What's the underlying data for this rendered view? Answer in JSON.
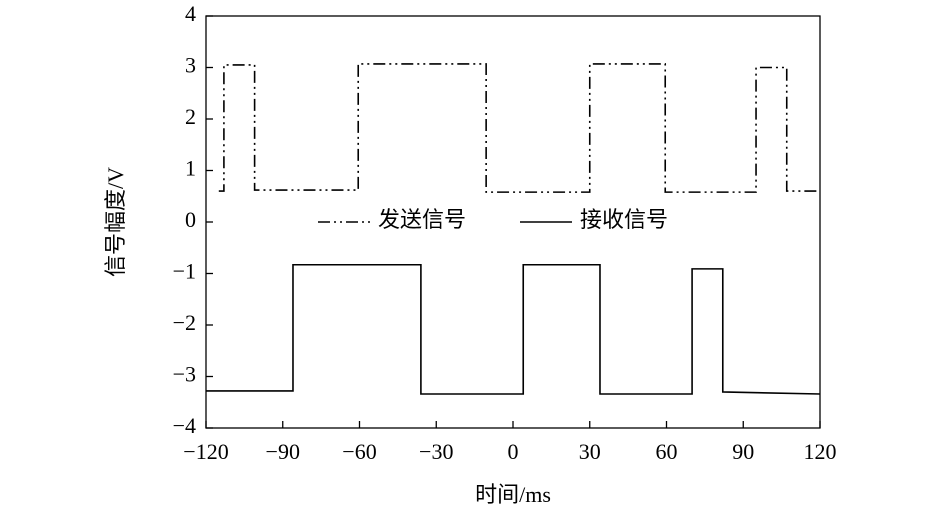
{
  "chart_data": {
    "type": "line",
    "xlabel": "时间/ms",
    "ylabel": "信号幅度/V",
    "xlim": [
      -120,
      120
    ],
    "xticks": [
      {
        "value": -120,
        "label": "−120"
      },
      {
        "value": -90,
        "label": "−90"
      },
      {
        "value": -60,
        "label": "−60"
      },
      {
        "value": -30,
        "label": "−30"
      },
      0,
      30,
      60,
      90,
      120
    ],
    "ylim": [
      -4,
      4
    ],
    "yticks": [
      {
        "value": -4,
        "label": "−4"
      },
      {
        "value": -3,
        "label": "−3"
      },
      {
        "value": -2,
        "label": "−2"
      },
      {
        "value": -1,
        "label": "−1"
      },
      0,
      1,
      2,
      3,
      4
    ],
    "legend": "center",
    "series": [
      {
        "name": "发送信号",
        "color": "#000000",
        "style": "dashdotdot",
        "x": [
          -115,
          -113,
          -113,
          -101,
          -101,
          -60.5,
          -60.5,
          -10.5,
          -10.5,
          30,
          30,
          59.5,
          59.5,
          95,
          95,
          107,
          107,
          120
        ],
        "values": [
          0.6,
          0.6,
          3.05,
          3.05,
          0.62,
          0.62,
          3.07,
          3.07,
          0.58,
          0.58,
          3.07,
          3.07,
          0.58,
          0.58,
          3.0,
          3.0,
          0.6,
          0.6
        ]
      },
      {
        "name": "接收信号",
        "color": "#000000",
        "style": "solid",
        "x": [
          -120,
          -86,
          -86,
          -36,
          -36,
          4,
          4,
          34,
          34,
          70,
          70,
          82,
          82,
          120
        ],
        "values": [
          -3.28,
          -3.28,
          -0.83,
          -0.83,
          -3.34,
          -3.34,
          -0.83,
          -0.83,
          -3.34,
          -3.34,
          -0.91,
          -0.91,
          -3.3,
          -3.34
        ]
      }
    ]
  }
}
